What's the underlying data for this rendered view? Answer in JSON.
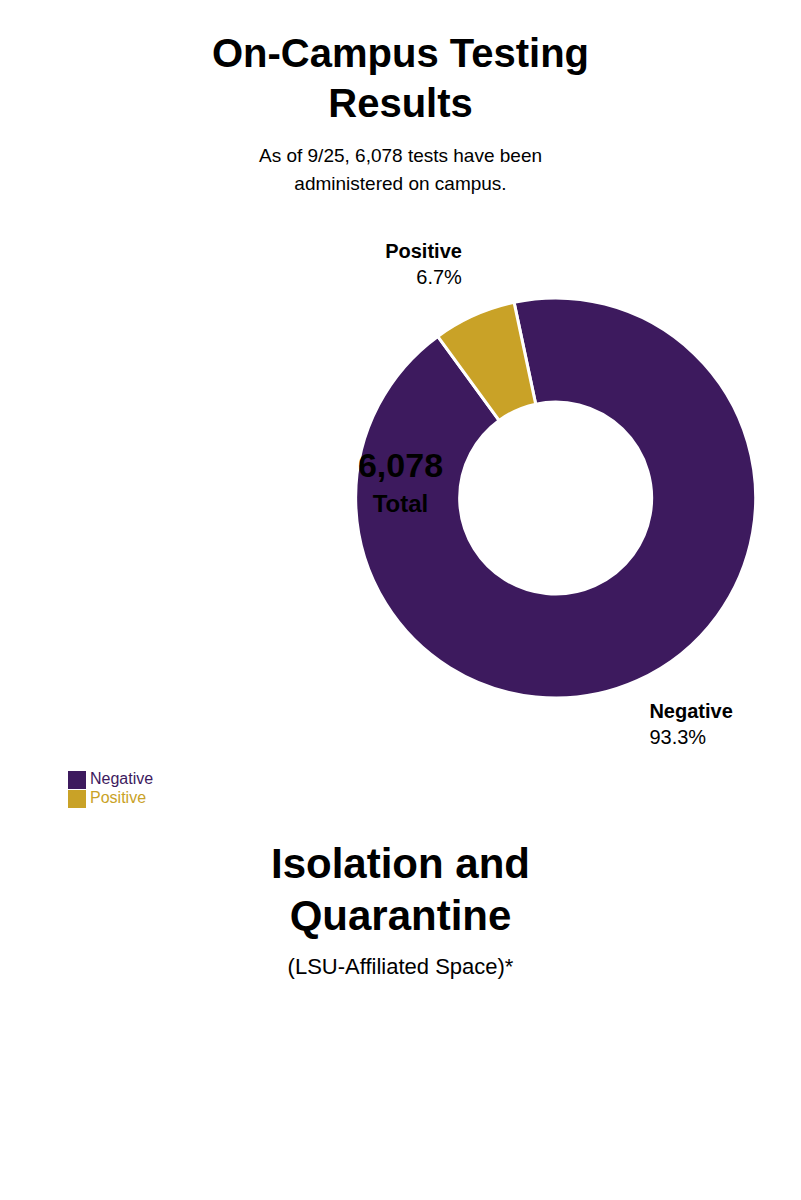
{
  "chart_data": {
    "type": "pie",
    "donut": true,
    "title": "On-Campus Testing\nResults",
    "subtitle": "As of 9/25, 6,078 tests have been\nadministered on campus.",
    "categories": [
      "Negative",
      "Positive"
    ],
    "values": [
      93.3,
      6.7
    ],
    "value_labels": [
      "93.3%",
      "6.7%"
    ],
    "colors": [
      "#3d1a5e",
      "#c9a227"
    ],
    "data_labels": true,
    "legend": "bottom left",
    "annotations": [
      "6,078",
      "Total",
      "Isolation and\nQuarantine",
      "(LSU-Affiliated Space)*"
    ]
  }
}
